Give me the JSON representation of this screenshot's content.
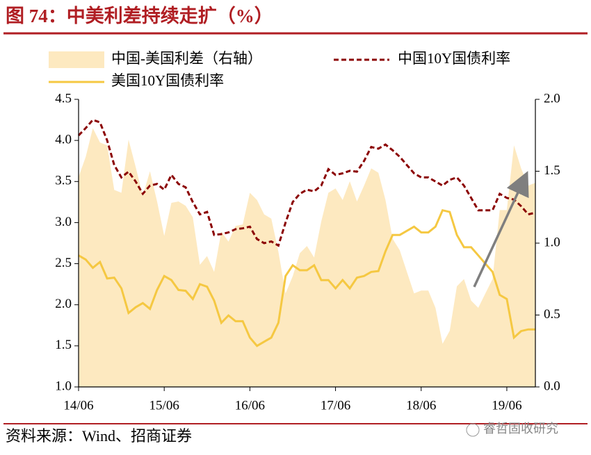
{
  "chart_data": {
    "type": "line",
    "title": "图 74：中美利差持续走扩（%）",
    "source": "资料来源：Wind、招商证券",
    "watermark": "睿哲固收研究",
    "categories": [
      "14/06",
      null,
      null,
      null,
      null,
      null,
      null,
      null,
      null,
      null,
      null,
      null,
      "15/06",
      null,
      null,
      null,
      null,
      null,
      null,
      null,
      null,
      null,
      null,
      null,
      "16/06",
      null,
      null,
      null,
      null,
      null,
      null,
      null,
      null,
      null,
      null,
      null,
      "17/06",
      null,
      null,
      null,
      null,
      null,
      null,
      null,
      null,
      null,
      null,
      null,
      "18/06",
      null,
      null,
      null,
      null,
      null,
      null,
      null,
      null,
      null,
      null,
      null,
      "19/06",
      null,
      null,
      null,
      null
    ],
    "series": [
      {
        "name": "中国-美国利差（右轴）",
        "type": "area",
        "axis": "y2",
        "color": "#fde9c0",
        "values": [
          1.46,
          1.6,
          1.8,
          1.7,
          1.68,
          1.37,
          1.35,
          1.72,
          1.53,
          1.33,
          1.5,
          1.29,
          1.05,
          1.28,
          1.29,
          1.26,
          1.18,
          0.85,
          0.91,
          0.8,
          1.08,
          1.01,
          1.12,
          1.13,
          1.35,
          1.3,
          1.2,
          1.17,
          0.94,
          0.65,
          0.77,
          0.93,
          0.98,
          0.9,
          1.15,
          1.35,
          1.38,
          1.3,
          1.43,
          1.29,
          1.4,
          1.52,
          1.49,
          1.3,
          1.03,
          0.95,
          0.8,
          0.65,
          0.67,
          0.67,
          0.55,
          0.3,
          0.39,
          0.7,
          0.75,
          0.6,
          0.55,
          0.65,
          0.75,
          1.23,
          1.23,
          1.68,
          1.52,
          1.4,
          1.42
        ]
      },
      {
        "name": "中国10Y国债利率",
        "type": "line",
        "dashed": true,
        "color": "#8b0000",
        "values": [
          4.06,
          4.15,
          4.25,
          4.22,
          4.0,
          3.7,
          3.55,
          3.62,
          3.5,
          3.35,
          3.45,
          3.47,
          3.4,
          3.58,
          3.47,
          3.43,
          3.25,
          3.1,
          3.13,
          2.85,
          2.86,
          2.88,
          2.92,
          2.93,
          2.95,
          2.8,
          2.75,
          2.77,
          2.72,
          3.0,
          3.25,
          3.35,
          3.4,
          3.38,
          3.45,
          3.65,
          3.58,
          3.6,
          3.63,
          3.62,
          3.75,
          3.92,
          3.9,
          3.95,
          3.88,
          3.8,
          3.7,
          3.6,
          3.55,
          3.55,
          3.5,
          3.45,
          3.52,
          3.55,
          3.45,
          3.3,
          3.15,
          3.15,
          3.15,
          3.35,
          3.3,
          3.28,
          3.2,
          3.1,
          3.12
        ]
      },
      {
        "name": "美国10Y国债利率",
        "type": "line",
        "dashed": false,
        "color": "#f5c842",
        "values": [
          2.6,
          2.55,
          2.45,
          2.52,
          2.32,
          2.33,
          2.2,
          1.9,
          1.97,
          2.02,
          1.95,
          2.18,
          2.35,
          2.3,
          2.18,
          2.17,
          2.07,
          2.25,
          2.22,
          2.05,
          1.78,
          1.87,
          1.8,
          1.8,
          1.6,
          1.5,
          1.55,
          1.6,
          1.78,
          2.35,
          2.48,
          2.42,
          2.42,
          2.48,
          2.3,
          2.3,
          2.2,
          2.3,
          2.2,
          2.33,
          2.35,
          2.4,
          2.41,
          2.65,
          2.85,
          2.85,
          2.9,
          2.95,
          2.88,
          2.88,
          2.95,
          3.15,
          3.13,
          2.85,
          2.7,
          2.7,
          2.6,
          2.5,
          2.4,
          2.12,
          2.07,
          1.6,
          1.68,
          1.7,
          1.7
        ]
      }
    ],
    "ylim": [
      1.0,
      4.5
    ],
    "yticks": [
      {
        "value": 1,
        "label": "1.0"
      },
      1.5,
      {
        "value": 2,
        "label": "2.0"
      },
      2.5,
      {
        "value": 3,
        "label": "3.0"
      },
      3.5,
      {
        "value": 4,
        "label": "4.0"
      },
      4.5
    ],
    "y2lim": [
      0,
      2
    ],
    "y2ticks": [
      {
        "value": 0,
        "label": "0.0"
      },
      0.5,
      {
        "value": 1,
        "label": "1.0"
      },
      1.5,
      {
        "value": 2,
        "label": "2.0"
      }
    ]
  }
}
